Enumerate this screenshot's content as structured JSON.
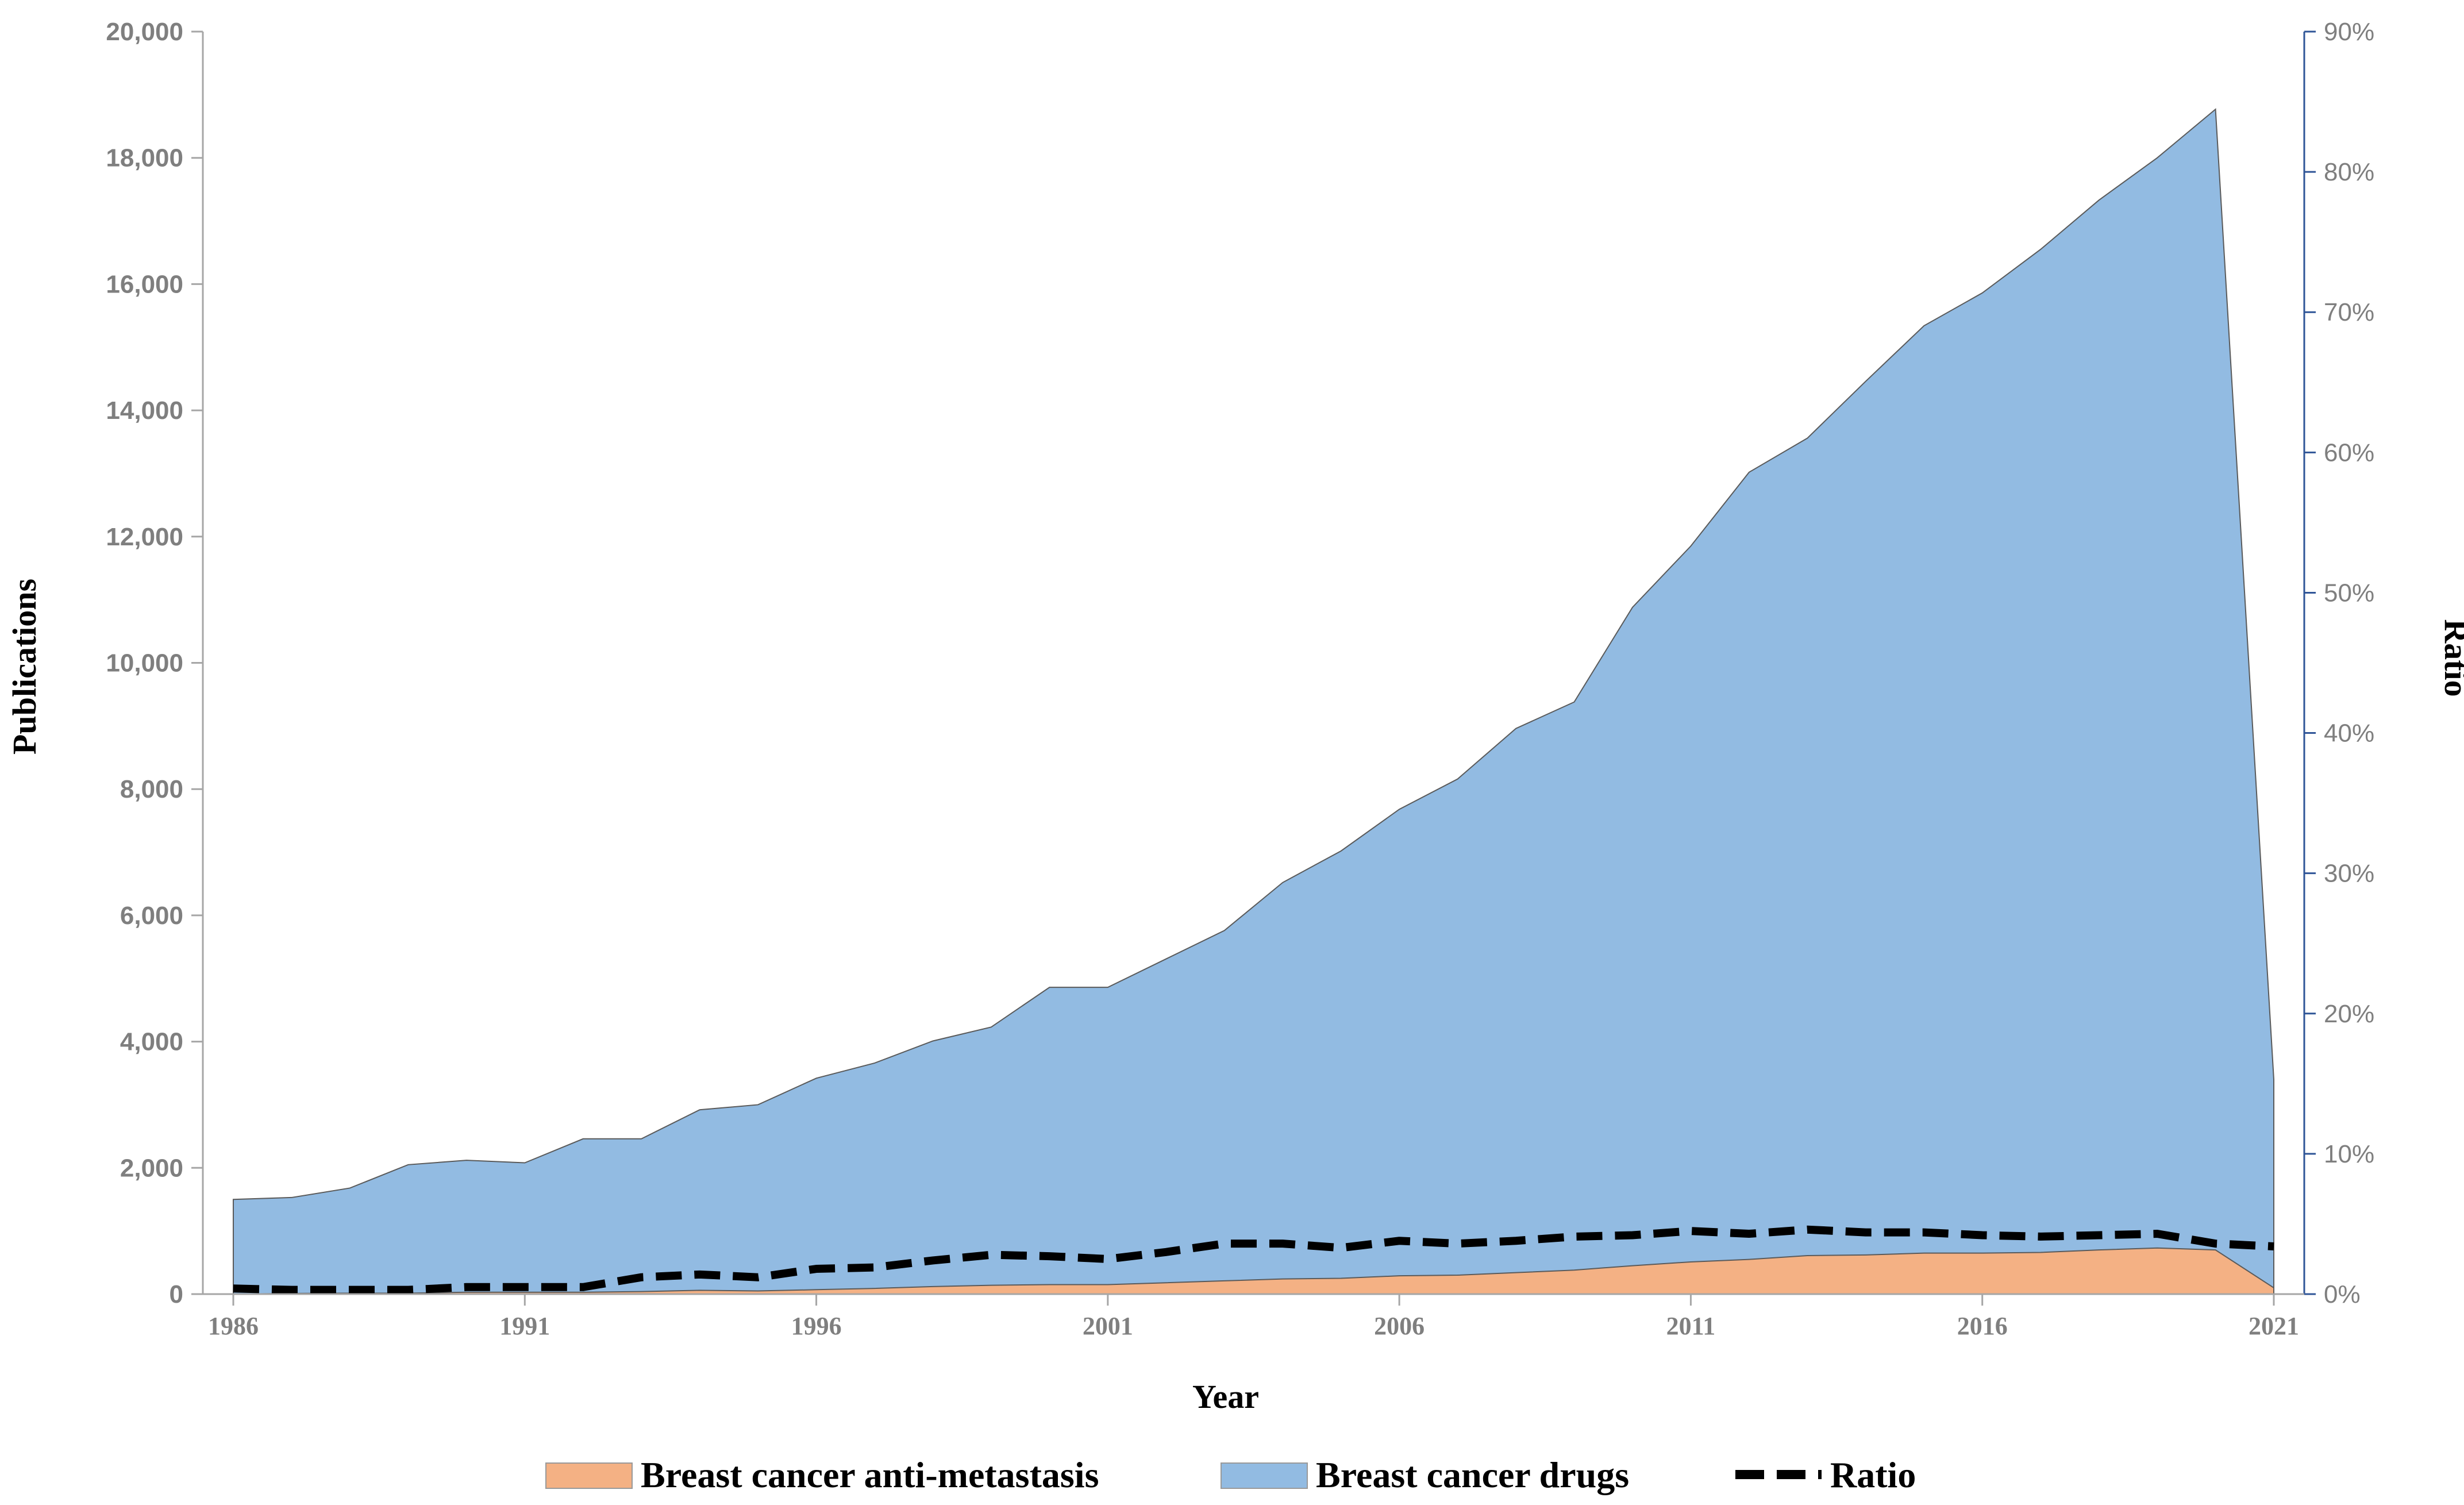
{
  "chart_data": {
    "type": "area",
    "x": [
      1986,
      1987,
      1988,
      1989,
      1990,
      1991,
      1992,
      1993,
      1994,
      1995,
      1996,
      1997,
      1998,
      1999,
      2000,
      2001,
      2002,
      2003,
      2004,
      2005,
      2006,
      2007,
      2008,
      2009,
      2010,
      2011,
      2012,
      2013,
      2014,
      2015,
      2016,
      2017,
      2018,
      2019,
      2020,
      2021
    ],
    "x_ticks": [
      "1986",
      "1991",
      "1996",
      "2001",
      "2006",
      "2011",
      "2016",
      "2021"
    ],
    "xlabel": "Year",
    "ylabel": "Publications",
    "ylabel_right": "Ratio",
    "ylim": [
      0,
      20000
    ],
    "ylim_right": [
      0,
      0.9
    ],
    "y_ticks": [
      "0",
      "2,000",
      "4,000",
      "6,000",
      "8,000",
      "10,000",
      "12,000",
      "14,000",
      "16,000",
      "18,000",
      "20,000"
    ],
    "y_ticks_right": [
      "0%",
      "10%",
      "20%",
      "30%",
      "40%",
      "50%",
      "60%",
      "70%",
      "80%",
      "90%"
    ],
    "grid": false,
    "legend_position": "bottom",
    "series": [
      {
        "name": "Breast cancer drugs",
        "kind": "area",
        "color": "#92bbe2",
        "values": [
          1500,
          1530,
          1680,
          2050,
          2120,
          2080,
          2460,
          2460,
          2920,
          3000,
          3420,
          3660,
          4010,
          4230,
          4860,
          4860,
          5310,
          5760,
          6520,
          7020,
          7680,
          8160,
          8960,
          9380,
          10880,
          11850,
          13020,
          13560,
          14460,
          15340,
          15860,
          16550,
          17330,
          18000,
          18770,
          3400
        ]
      },
      {
        "name": "Breast cancer anti-metastasis",
        "kind": "area",
        "color": "#f4b184",
        "values": [
          0,
          10,
          15,
          15,
          30,
          30,
          30,
          40,
          60,
          50,
          70,
          90,
          120,
          140,
          150,
          150,
          180,
          210,
          240,
          250,
          290,
          300,
          340,
          380,
          450,
          510,
          550,
          610,
          620,
          650,
          650,
          660,
          700,
          730,
          700,
          100
        ]
      },
      {
        "name": "Ratio",
        "kind": "line",
        "color": "#000000",
        "axis": "right",
        "values": [
          0.004,
          0.003,
          0.003,
          0.003,
          0.005,
          0.005,
          0.005,
          0.012,
          0.014,
          0.012,
          0.018,
          0.019,
          0.024,
          0.028,
          0.027,
          0.025,
          0.03,
          0.036,
          0.036,
          0.033,
          0.038,
          0.036,
          0.038,
          0.041,
          0.042,
          0.045,
          0.043,
          0.046,
          0.044,
          0.044,
          0.042,
          0.041,
          0.042,
          0.043,
          0.036,
          0.034
        ]
      }
    ]
  }
}
